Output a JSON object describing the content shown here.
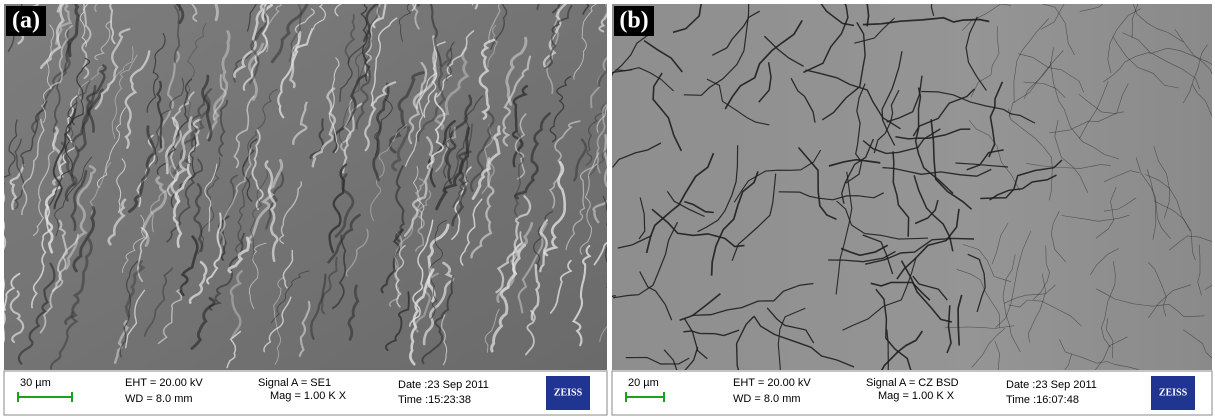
{
  "panels": [
    {
      "label": "(a)",
      "scale_bar": "30 µm",
      "eht": "EHT = 20.00 kV",
      "wd": "WD = 8.0 mm",
      "signal": "Signal A = SE1",
      "mag": "Mag =  1.00 K X",
      "date": "Date :23 Sep 2011",
      "time": "Time :15:23:38",
      "logo": "ZEISS"
    },
    {
      "label": "(b)",
      "scale_bar": "20 µm",
      "eht": "EHT = 20.00 kV",
      "wd": "WD = 8.0 mm",
      "signal": "Signal A = CZ BSD",
      "mag": "Mag =  1.00 K X",
      "date": "Date :23 Sep 2011",
      "time": "Time :16:07:48",
      "logo": "ZEISS"
    }
  ]
}
